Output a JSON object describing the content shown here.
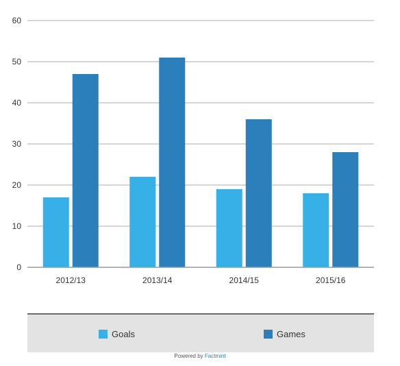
{
  "chart_data": {
    "type": "bar",
    "categories": [
      "2012/13",
      "2013/14",
      "2014/15",
      "2015/16"
    ],
    "series": [
      {
        "name": "Goals",
        "values": [
          17,
          22,
          19,
          18
        ],
        "color": "#36b0e6"
      },
      {
        "name": "Games",
        "values": [
          47,
          51,
          36,
          28
        ],
        "color": "#2b7fba"
      }
    ],
    "ylim": [
      0,
      60
    ],
    "yticks": [
      0,
      10,
      20,
      30,
      40,
      50,
      60
    ],
    "grid": true,
    "legend_position": "bottom"
  },
  "footer": {
    "prefix": "Powered by",
    "brand": "Factmint"
  }
}
